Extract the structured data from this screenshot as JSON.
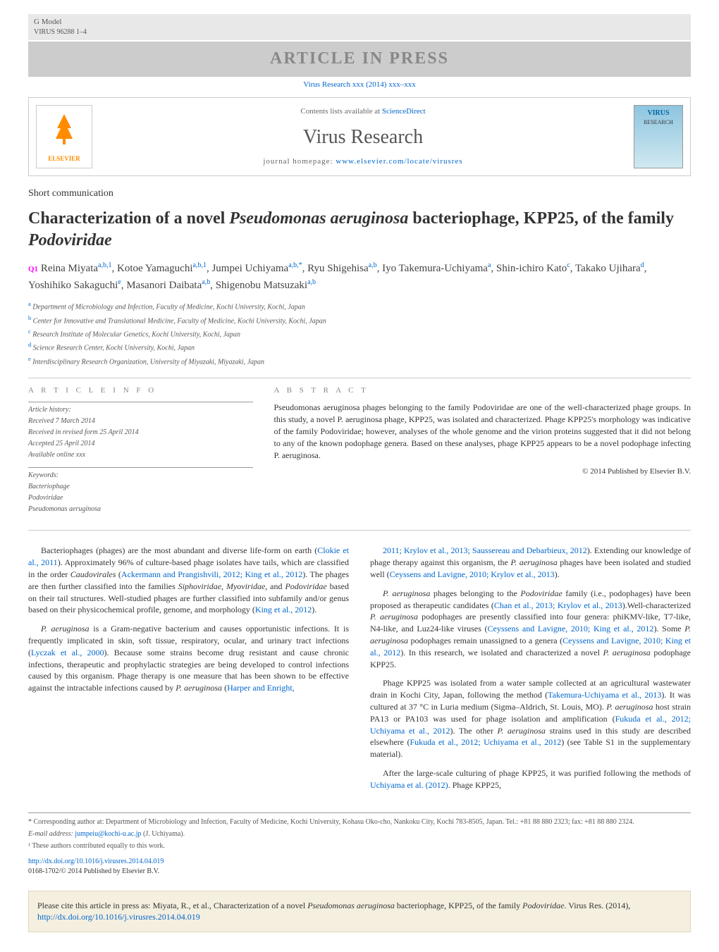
{
  "gmodel": {
    "line1": "G Model",
    "line2": "VIRUS 96288 1–4"
  },
  "press_banner": "ARTICLE IN PRESS",
  "doi_top": "Virus Research xxx (2014) xxx–xxx",
  "header": {
    "contents": "Contents lists available at ",
    "contents_link": "ScienceDirect",
    "journal": "Virus Research",
    "homepage_label": "journal homepage: ",
    "homepage_url": "www.elsevier.com/locate/virusres",
    "elsevier": "ELSEVIER",
    "cover_title": "VIRUS",
    "cover_sub": "RESEARCH"
  },
  "article_type": "Short communication",
  "title_pre": "Characterization of a novel ",
  "title_em1": "Pseudomonas aeruginosa",
  "title_mid": " bacteriophage, KPP25, of the family ",
  "title_em2": "Podoviridae",
  "q1": "Q1",
  "authors_html": "Reina Miyata|a,b,1|, Kotoe Yamaguchi|a,b,1|, Jumpei Uchiyama|a,b,*|, Ryu Shigehisa|a,b|, Iyo Takemura-Uchiyama|a|, Shin-ichiro Kato|c|, Takako Ujihara|d|, Yoshihiko Sakaguchi|e|, Masanori Daibata|a,b|, Shigenobu Matsuzaki|a,b|",
  "affiliations": [
    {
      "sup": "a",
      "text": "Department of Microbiology and Infection, Faculty of Medicine, Kochi University, Kochi, Japan"
    },
    {
      "sup": "b",
      "text": "Center for Innovative and Translational Medicine, Faculty of Medicine, Kochi University, Kochi, Japan"
    },
    {
      "sup": "c",
      "text": "Research Institute of Molecular Genetics, Kochi University, Kochi, Japan"
    },
    {
      "sup": "d",
      "text": "Science Research Center, Kochi University, Kochi, Japan"
    },
    {
      "sup": "e",
      "text": "Interdisciplinary Research Organization, University of Miyazaki, Miyazaki, Japan"
    }
  ],
  "info_head": "A R T I C L E   I N F O",
  "abstract_head": "A B S T R A C T",
  "history_label": "Article history:",
  "history": [
    "Received 7 March 2014",
    "Received in revised form 25 April 2014",
    "Accepted 25 April 2014",
    "Available online xxx"
  ],
  "keywords_label": "Keywords:",
  "keywords": [
    "Bacteriophage",
    "Podoviridae",
    "Pseudomonas aeruginosa"
  ],
  "abstract": "Pseudomonas aeruginosa phages belonging to the family Podoviridae are one of the well-characterized phage groups. In this study, a novel P. aeruginosa phage, KPP25, was isolated and characterized. Phage KPP25's morphology was indicative of the family Podoviridae; however, analyses of the whole genome and the virion proteins suggested that it did not belong to any of the known podophage genera. Based on these analyses, phage KPP25 appears to be a novel podophage infecting P. aeruginosa.",
  "copyright": "© 2014 Published by Elsevier B.V.",
  "col1": [
    {
      "text": "Bacteriophages (phages) are the most abundant and diverse life-form on earth (",
      "link": "Clokie et al., 2011",
      "text2": "). Approximately 96% of culture-based phage isolates have tails, which are classified in the order ",
      "em": "Caudovirales",
      "text3": " (",
      "link2": "Ackermann and Prangishvili, 2012; King et al., 2012",
      "text4": "). The phages are then further classified into the families ",
      "em2": "Siphoviridae",
      "text5": ", ",
      "em3": "Myoviridae",
      "text6": ", and ",
      "em4": "Podoviridae",
      "text7": " based on their tail structures. Well-studied phages are further classified into subfamily and/or genus based on their physicochemical profile, genome, and morphology (",
      "link3": "King et al., 2012",
      "text8": ")."
    },
    {
      "em": "P. aeruginosa",
      "text": " is a Gram-negative bacterium and causes opportunistic infections. It is frequently implicated in skin, soft tissue, respiratory, ocular, and urinary tract infections (",
      "link": "Lyczak et al., 2000",
      "text2": "). Because some strains become drug resistant and cause chronic infections, therapeutic and prophylactic strategies are being developed to control infections caused by this organism. Phage therapy is one measure that has been shown to be effective against the intractable infections caused by ",
      "em2": "P. aeruginosa",
      "text3": " (",
      "link2": "Harper and Enright,"
    }
  ],
  "col2": [
    {
      "link": "2011; Krylov et al., 2013; Saussereau and Debarbieux, 2012",
      "text": "). Extending our knowledge of phage therapy against this organism, the ",
      "em": "P. aeruginosa",
      "text2": " phages have been isolated and studied well (",
      "link2": "Ceyssens and Lavigne, 2010; Krylov et al., 2013",
      "text3": ")."
    },
    {
      "em": "P. aeruginosa",
      "text": " phages belonging to the ",
      "em2": "Podoviridae",
      "text2": " family (i.e., podophages) have been proposed as therapeutic candidates (",
      "link": "Chan et al., 2013; Krylov et al., 2013",
      "text3": ").Well-characterized ",
      "em3": "P. aeruginosa",
      "text4": " podophages are presently classified into four genera: phiKMV-like, T7-like, N4-like, and Luz24-like viruses (",
      "link2": "Ceyssens and Lavigne, 2010; King et al., 2012",
      "text5": "). Some ",
      "em4": "P. aeruginosa",
      "text6": " podophages remain unassigned to a genera (",
      "link3": "Ceyssens and Lavigne, 2010; King et al., 2012",
      "text7": "). In this research, we isolated and characterized a novel ",
      "em5": "P. aeruginosa",
      "text8": " podophage KPP25."
    },
    {
      "text": "Phage KPP25 was isolated from a water sample collected at an agricultural wastewater drain in Kochi City, Japan, following the method (",
      "link": "Takemura-Uchiyama et al., 2013",
      "text2": "). It was cultured at 37 °C in Luria medium (Sigma–Aldrich, St. Louis, MO). ",
      "em": "P. aeruginosa",
      "text3": " host strain PA13 or PA103 was used for phage isolation and amplification (",
      "link2": "Fukuda et al., 2012; Uchiyama et al., 2012",
      "text4": "). The other ",
      "em2": "P. aeruginosa",
      "text5": " strains used in this study are described elsewhere (",
      "link3": "Fukuda et al., 2012; Uchiyama et al., 2012",
      "text6": ") (see Table S1 in the supplementary material)."
    },
    {
      "text": "After the large-scale culturing of phage KPP25, it was purified following the methods of ",
      "link": "Uchiyama et al. (2012)",
      "text2": ". Phage KPP25,"
    }
  ],
  "footnotes": {
    "corr": "* Corresponding author at: Department of Microbiology and Infection, Faculty of Medicine, Kochi University, Kohasu Oko-cho, Nankoku City, Kochi 783-8505, Japan. Tel.: +81 88 880 2323; fax: +81 88 880 2324.",
    "email_label": "E-mail address: ",
    "email": "jumpeiu@kochi-u.ac.jp",
    "email_who": " (J. Uchiyama).",
    "contrib": "¹ These authors contributed equally to this work."
  },
  "doi": {
    "url": "http://dx.doi.org/10.1016/j.virusres.2014.04.019",
    "issn": "0168-1702/© 2014 Published by Elsevier B.V."
  },
  "cite": {
    "pre": "Please cite this article in press as: Miyata, R., et al., Characterization of a novel ",
    "em1": "Pseudomonas aeruginosa",
    "mid": " bacteriophage, KPP25, of the family ",
    "em2": "Podoviridae",
    "post": ". Virus Res. (2014), ",
    "link": "http://dx.doi.org/10.1016/j.virusres.2014.04.019"
  },
  "colors": {
    "link": "#0066cc",
    "q1": "#ff00ff",
    "banner_bg": "#cccccc",
    "banner_fg": "#888888",
    "cite_bg": "#f5efe0"
  }
}
